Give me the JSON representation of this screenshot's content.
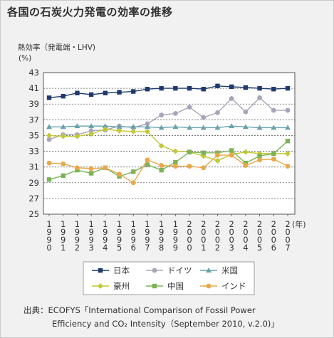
{
  "title": "各国の石炭火力発電の効率の推移",
  "source_prefix": "出典：",
  "source_line1": "ECOFYS「International Comparison of Fossil Power",
  "source_line2": "Efficiency and CO₂ Intensity（September 2010, v.2.0)」",
  "chart_data": {
    "type": "line",
    "ylabel": "熱効率（発電端・LHV)",
    "yunit": "(%)",
    "xunit": "(年)",
    "ylim": [
      25,
      43
    ],
    "yticks": [
      25,
      27,
      29,
      31,
      33,
      35,
      37,
      39,
      41,
      43
    ],
    "grid": true,
    "legend_position": "bottom",
    "categories": [
      "1990",
      "1991",
      "1992",
      "1993",
      "1994",
      "1995",
      "1996",
      "1997",
      "1998",
      "1999",
      "2000",
      "2001",
      "2002",
      "2003",
      "2004",
      "2005",
      "2006",
      "2007"
    ],
    "series": [
      {
        "name": "日本",
        "color": "#1f3a6e",
        "marker": "square",
        "values": [
          39.8,
          40.0,
          40.4,
          40.2,
          40.4,
          40.5,
          40.6,
          40.9,
          41.0,
          41.0,
          41.0,
          40.9,
          41.3,
          41.2,
          41.1,
          41.0,
          40.9,
          41.0
        ]
      },
      {
        "name": "ドイツ",
        "color": "#a6a6ba",
        "marker": "circle",
        "values": [
          34.5,
          35.1,
          35.1,
          35.6,
          35.7,
          36.2,
          36.0,
          36.5,
          37.6,
          37.8,
          38.6,
          37.3,
          37.9,
          39.7,
          38.0,
          39.8,
          38.2,
          38.2
        ]
      },
      {
        "name": "米国",
        "color": "#67a3ac",
        "marker": "triangle",
        "values": [
          36.1,
          36.1,
          36.2,
          36.2,
          36.2,
          36.1,
          36.1,
          36.1,
          36.0,
          36.1,
          36.0,
          36.0,
          36.0,
          36.2,
          36.1,
          36.0,
          36.0,
          36.0
        ]
      },
      {
        "name": "豪州",
        "color": "#c2c833",
        "marker": "diamond",
        "values": [
          35.0,
          34.9,
          34.9,
          35.2,
          35.8,
          35.6,
          35.5,
          35.5,
          33.7,
          33.0,
          32.9,
          32.4,
          31.8,
          32.6,
          32.9,
          32.7,
          32.7,
          32.7
        ]
      },
      {
        "name": "中国",
        "color": "#7db356",
        "marker": "square",
        "values": [
          29.4,
          29.9,
          30.6,
          30.2,
          30.9,
          29.8,
          30.4,
          31.3,
          30.6,
          31.6,
          32.9,
          32.8,
          32.8,
          33.1,
          31.5,
          32.4,
          32.7,
          34.3
        ]
      },
      {
        "name": "インド",
        "color": "#e9a84a",
        "marker": "circle",
        "values": [
          31.5,
          31.4,
          30.9,
          30.8,
          30.9,
          30.1,
          29.0,
          31.9,
          31.2,
          31.1,
          31.1,
          30.9,
          32.5,
          32.5,
          31.2,
          31.9,
          32.0,
          31.1
        ]
      }
    ]
  }
}
